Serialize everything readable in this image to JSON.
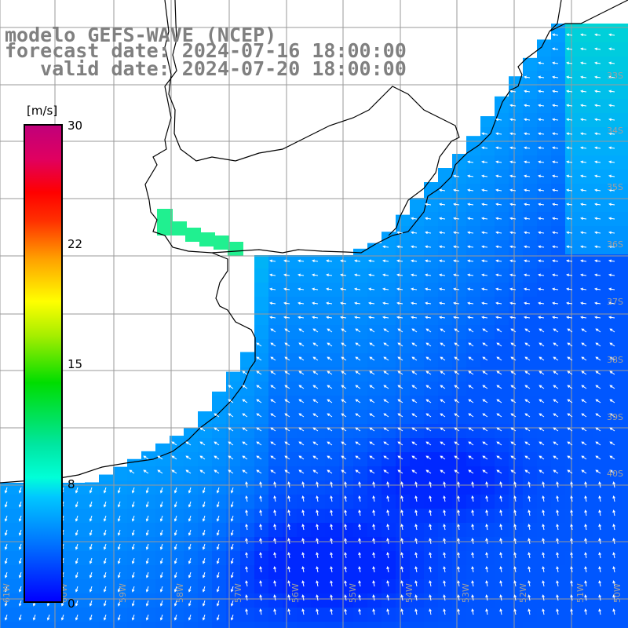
{
  "title": {
    "line1": "modelo GEFS-WAVE (NCEP)",
    "line2": "forecast date: 2024-07-16 18:00:00",
    "line3": "   valid date: 2024-07-20 18:00:00"
  },
  "colorbar": {
    "unit": "[m/s]",
    "ticks": [
      "30",
      "22",
      "15",
      "8",
      "0"
    ]
  },
  "map": {
    "lat_labels": [
      "33S",
      "34S",
      "35S",
      "36S",
      "37S",
      "38S",
      "39S",
      "40S"
    ],
    "lon_labels": [
      "61W",
      "60W",
      "59W",
      "58W",
      "57W",
      "56W",
      "55W",
      "54W",
      "53W",
      "52W",
      "51W",
      "50W"
    ],
    "field": "wind speed and direction",
    "arrow_direction": "mostly easterly/north-easterly flow",
    "colors": {
      "ocean_low": "#0000ff",
      "ocean_mid": "#0090ff",
      "ocean_high": "#00ffd0",
      "land": "#ffffff",
      "grid": "#9a9a9a"
    }
  }
}
